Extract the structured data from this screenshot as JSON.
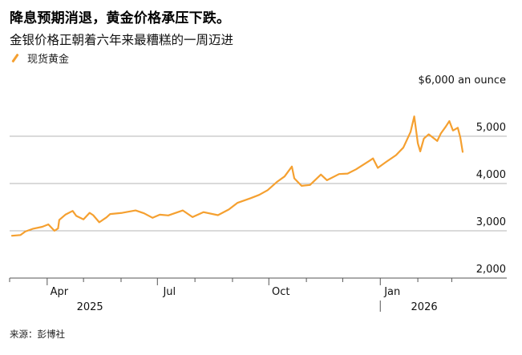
{
  "header": {
    "title": "降息预期消退，黄金价格承压下跌。",
    "subtitle": "金银价格正朝着六年来最糟糕的一周迈进"
  },
  "legend": {
    "label": "现货黄金"
  },
  "source": "来源：彭博社",
  "colors": {
    "series": "#f5a030",
    "grid": "#b4b4b4",
    "axis": "#555555"
  },
  "chart_data": {
    "type": "line",
    "title": "降息预期消退，黄金价格承压下跌。",
    "subtitle": "金银价格正朝着六年来最糟糕的一周迈进",
    "unit_label": "$6,000 an ounce",
    "ylim": [
      2000,
      6000
    ],
    "yticks": [
      {
        "value": 6000,
        "label": "$6,000 an ounce"
      },
      {
        "value": 5000,
        "label": "5,000"
      },
      {
        "value": 4000,
        "label": "4,000"
      },
      {
        "value": 3000,
        "label": "3,000"
      },
      {
        "value": 2000,
        "label": "2,000"
      }
    ],
    "xlim": [
      "2025-03-01",
      "2026-03-12"
    ],
    "xticks": [
      {
        "date": "2025-04-01",
        "label": "Apr"
      },
      {
        "date": "2025-07-01",
        "label": "Jul"
      },
      {
        "date": "2025-10-01",
        "label": "Oct"
      },
      {
        "date": "2026-01-01",
        "label": "Jan"
      }
    ],
    "minor_ticks": [
      "2025-03-01",
      "2025-05-01",
      "2025-06-01",
      "2025-08-01",
      "2025-09-01",
      "2025-11-01",
      "2025-12-01",
      "2026-02-01",
      "2026-03-01"
    ],
    "years": [
      {
        "date": "2025-05-01",
        "label": "2025"
      },
      {
        "date": "2026-02-01",
        "label": "2026"
      }
    ],
    "grid": true,
    "legend_position": "top-left",
    "series": [
      {
        "name": "现货黄金",
        "points": [
          [
            "2025-03-03",
            2895
          ],
          [
            "2025-03-10",
            2910
          ],
          [
            "2025-03-14",
            2985
          ],
          [
            "2025-03-20",
            3040
          ],
          [
            "2025-03-28",
            3085
          ],
          [
            "2025-04-02",
            3135
          ],
          [
            "2025-04-07",
            3000
          ],
          [
            "2025-04-10",
            3050
          ],
          [
            "2025-04-11",
            3230
          ],
          [
            "2025-04-16",
            3340
          ],
          [
            "2025-04-22",
            3420
          ],
          [
            "2025-04-25",
            3315
          ],
          [
            "2025-05-01",
            3240
          ],
          [
            "2025-05-06",
            3380
          ],
          [
            "2025-05-09",
            3330
          ],
          [
            "2025-05-14",
            3180
          ],
          [
            "2025-05-20",
            3285
          ],
          [
            "2025-05-23",
            3355
          ],
          [
            "2025-06-02",
            3380
          ],
          [
            "2025-06-13",
            3430
          ],
          [
            "2025-06-20",
            3370
          ],
          [
            "2025-06-27",
            3275
          ],
          [
            "2025-07-03",
            3340
          ],
          [
            "2025-07-10",
            3325
          ],
          [
            "2025-07-22",
            3430
          ],
          [
            "2025-07-30",
            3290
          ],
          [
            "2025-08-08",
            3395
          ],
          [
            "2025-08-20",
            3330
          ],
          [
            "2025-08-29",
            3450
          ],
          [
            "2025-09-05",
            3590
          ],
          [
            "2025-09-16",
            3690
          ],
          [
            "2025-09-23",
            3760
          ],
          [
            "2025-09-30",
            3860
          ],
          [
            "2025-10-08",
            4040
          ],
          [
            "2025-10-14",
            4150
          ],
          [
            "2025-10-20",
            4360
          ],
          [
            "2025-10-22",
            4110
          ],
          [
            "2025-10-28",
            3950
          ],
          [
            "2025-11-04",
            3970
          ],
          [
            "2025-11-13",
            4190
          ],
          [
            "2025-11-18",
            4070
          ],
          [
            "2025-11-28",
            4200
          ],
          [
            "2025-12-05",
            4210
          ],
          [
            "2025-12-12",
            4300
          ],
          [
            "2025-12-23",
            4480
          ],
          [
            "2025-12-26",
            4530
          ],
          [
            "2025-12-30",
            4330
          ],
          [
            "2026-01-06",
            4460
          ],
          [
            "2026-01-14",
            4600
          ],
          [
            "2026-01-20",
            4760
          ],
          [
            "2026-01-26",
            5090
          ],
          [
            "2026-01-29",
            5420
          ],
          [
            "2026-02-01",
            4850
          ],
          [
            "2026-02-03",
            4680
          ],
          [
            "2026-02-06",
            4950
          ],
          [
            "2026-02-10",
            5040
          ],
          [
            "2026-02-17",
            4900
          ],
          [
            "2026-02-20",
            5060
          ],
          [
            "2026-02-24",
            5200
          ],
          [
            "2026-02-27",
            5320
          ],
          [
            "2026-03-02",
            5120
          ],
          [
            "2026-03-06",
            5180
          ],
          [
            "2026-03-08",
            4980
          ],
          [
            "2026-03-10",
            4670
          ]
        ]
      }
    ]
  }
}
